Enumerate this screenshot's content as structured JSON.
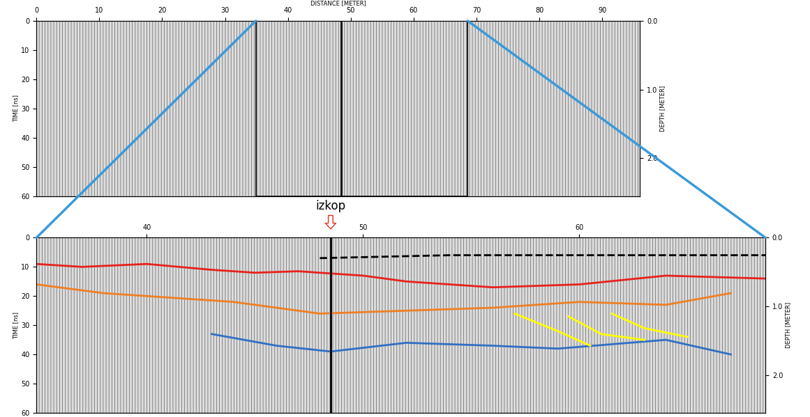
{
  "chart_data": [
    {
      "type": "radargram",
      "xlabel": "DISTANCE [METER]",
      "ylabel": "TIME [ns]",
      "y2label": "DEPTH [METER]",
      "xlim": [
        0,
        96
      ],
      "xticks": [
        0,
        10,
        20,
        30,
        40,
        50,
        60,
        70,
        80,
        90
      ],
      "ylim": [
        60,
        0
      ],
      "yticks": [
        0,
        10,
        20,
        30,
        40,
        50,
        60
      ],
      "y2lim": [
        2.55,
        0
      ],
      "y2ticks": [
        {
          "value": 0,
          "label": "0.0"
        },
        {
          "value": 1,
          "label": "1.0"
        },
        {
          "value": 2,
          "label": "2.0"
        }
      ]
    },
    {
      "type": "radargram",
      "ylabel": "TIME [ns]",
      "y2label": "DEPTH [METER]",
      "xlim": [
        34.9,
        68.6
      ],
      "xticks": [
        40,
        50,
        60
      ],
      "ylim": [
        60,
        0
      ],
      "yticks": [
        0,
        10,
        20,
        30,
        40,
        50,
        60
      ],
      "y2lim": [
        2.55,
        0
      ],
      "y2ticks": [
        {
          "value": 0,
          "label": "0.0"
        },
        {
          "value": 1,
          "label": "1.0"
        },
        {
          "value": 2,
          "label": "2.0"
        }
      ],
      "annotations": [
        {
          "text": "izkop",
          "x": 48.5,
          "color": "#e03020"
        }
      ],
      "series": [
        {
          "color": "#000000",
          "line_style": "dashed",
          "x": [
            48,
            54,
            60,
            68.6
          ],
          "values": [
            7,
            6,
            6,
            6
          ]
        },
        {
          "color": "#e8211b",
          "line_style": "solid",
          "x": [
            34.9,
            37,
            40,
            43,
            45,
            47,
            50,
            52,
            56,
            60,
            64,
            68.6
          ],
          "values": [
            9,
            10,
            9,
            11,
            12,
            11.5,
            13,
            15,
            17,
            16,
            13,
            14
          ]
        },
        {
          "color": "#f07f22",
          "line_style": "solid",
          "x": [
            34.9,
            38,
            40,
            44,
            48,
            52,
            56,
            60,
            64,
            67
          ],
          "values": [
            16,
            19,
            20,
            22,
            26,
            25,
            24,
            22,
            23,
            19
          ]
        },
        {
          "color": "#2f6fc4",
          "line_style": "solid",
          "x": [
            43,
            46,
            48.5,
            52,
            56,
            59,
            64,
            67
          ],
          "values": [
            33,
            37,
            39,
            36,
            37,
            38,
            35,
            40
          ]
        },
        {
          "color": "#ffff00",
          "line_style": "solid",
          "x": [
            57,
            59,
            60.5
          ],
          "values": [
            26,
            32,
            37
          ]
        },
        {
          "color": "#ffff00",
          "line_style": "solid",
          "x": [
            59.5,
            61,
            63
          ],
          "values": [
            27,
            33,
            35
          ]
        },
        {
          "color": "#ffff00",
          "line_style": "solid",
          "x": [
            61.5,
            63,
            65
          ],
          "values": [
            26,
            31,
            34
          ]
        }
      ]
    }
  ]
}
